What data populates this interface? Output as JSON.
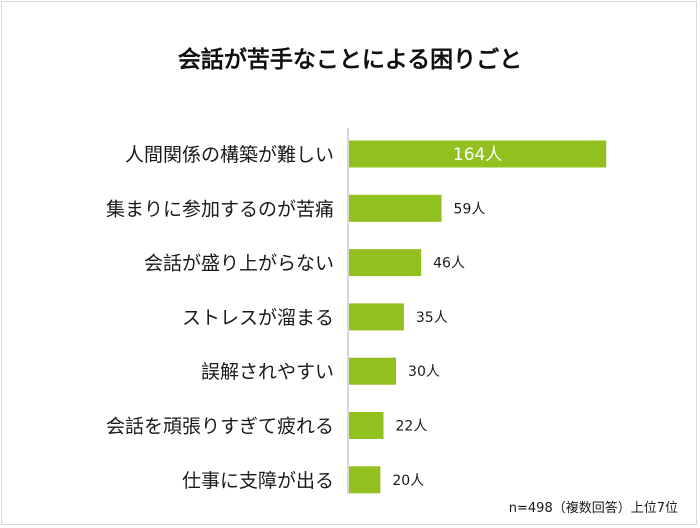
{
  "chart_data": {
    "type": "bar",
    "orientation": "horizontal",
    "title": "会話が苦手なことによる困りごと",
    "categories": [
      "人間関係の構築が難しい",
      "集まりに参加するのが苦痛",
      "会話が盛り上がらない",
      "ストレスが溜まる",
      "誤解されやすい",
      "会話を頑張りすぎて疲れる",
      "仕事に支障が出る"
    ],
    "values": [
      164,
      59,
      46,
      35,
      30,
      22,
      20
    ],
    "value_labels": [
      "164人",
      "59人",
      "46人",
      "35人",
      "30人",
      "22人",
      "20人"
    ],
    "unit": "人",
    "xlim": [
      0,
      190
    ],
    "grid": false,
    "note": "n=498（複数回答）上位7位",
    "colors": {
      "bar": "#92c01e",
      "axis": "#bfbfbf",
      "inside_label": "#ffffff",
      "text": "#1a1a1a"
    }
  }
}
